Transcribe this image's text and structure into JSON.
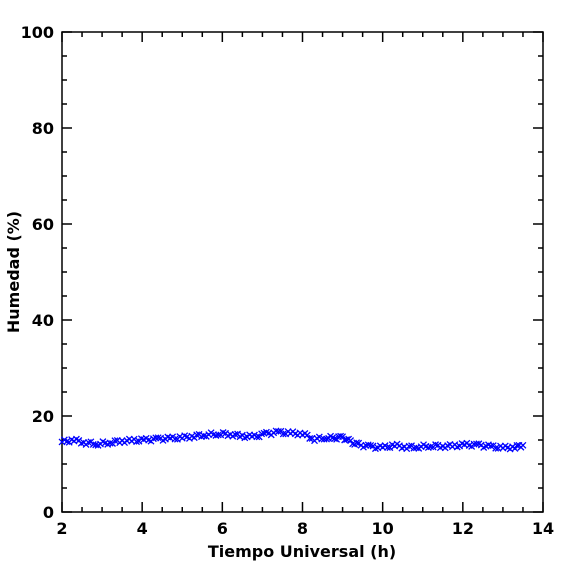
{
  "chart_data": {
    "type": "scatter",
    "title": "",
    "xlabel": "Tiempo Universal (h)",
    "ylabel": "Humedad (%)",
    "xlim": [
      2,
      14
    ],
    "ylim": [
      0,
      100
    ],
    "x_ticks": [
      2,
      4,
      6,
      8,
      10,
      12,
      14
    ],
    "y_ticks": [
      0,
      20,
      40,
      60,
      80,
      100
    ],
    "x_minor_step": 0.5,
    "y_minor_step": 5,
    "grid": false,
    "legend": "none",
    "marker": "x",
    "color": "#0000ff",
    "series": [
      {
        "x": [
          2.0,
          2.3,
          2.6,
          2.9,
          3.2,
          3.5,
          3.8,
          4.1,
          4.4,
          4.7,
          5.0,
          5.3,
          5.6,
          5.9,
          6.2,
          6.5,
          6.8,
          7.1,
          7.4,
          7.7,
          8.0,
          8.3,
          8.6,
          8.8,
          9.0,
          9.2,
          9.4,
          9.7,
          10.0,
          10.3,
          10.6,
          10.9,
          11.2,
          11.5,
          11.8,
          12.1,
          12.4,
          12.7,
          13.0,
          13.3,
          13.5
        ],
        "values": [
          14.6,
          15.0,
          14.4,
          14.2,
          14.5,
          14.8,
          14.9,
          15.0,
          15.2,
          15.3,
          15.5,
          15.8,
          16.1,
          16.3,
          16.2,
          15.8,
          15.7,
          16.3,
          16.6,
          16.4,
          16.3,
          15.2,
          15.5,
          15.4,
          15.6,
          14.6,
          14.0,
          13.6,
          13.4,
          13.9,
          13.5,
          13.6,
          13.8,
          13.7,
          13.8,
          14.0,
          13.9,
          13.6,
          13.4,
          13.5,
          13.9
        ]
      }
    ]
  }
}
